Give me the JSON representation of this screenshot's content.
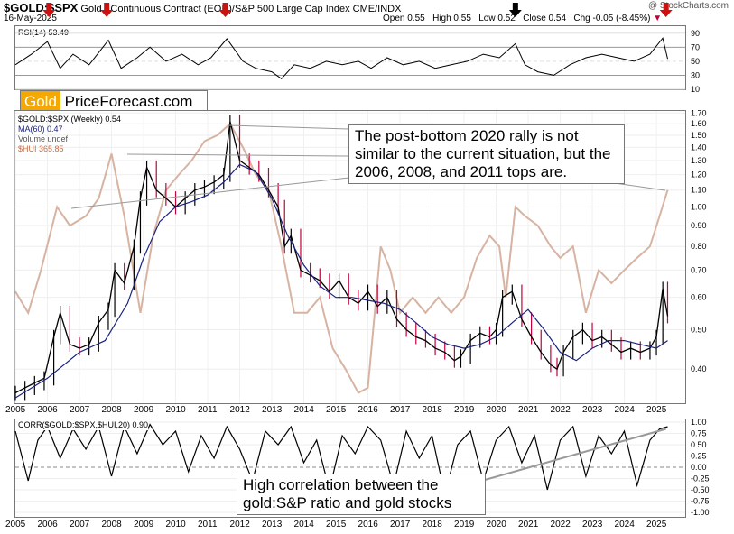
{
  "header": {
    "symbol": "$GOLD:$SPX",
    "description": "Gold - Continuous Contract (EOD)/S&P 500 Large Cap Index  CME/INDX",
    "date": "16-May-2025",
    "open_label": "Open",
    "open": "0.55",
    "high_label": "High",
    "high": "0.55",
    "low_label": "Low",
    "low": "0.52",
    "close_label": "Close",
    "close": "0.54",
    "chg_label": "Chg",
    "chg": "-0.05 (-8.45%)",
    "brand": "@ StockCharts.com"
  },
  "logo": {
    "part1": "Gold",
    "part2": "PriceForecast.com"
  },
  "colors": {
    "ma": "#1a237e",
    "hui": "#d7b3a2",
    "candle": "#000000",
    "candle_down": "#c2003a",
    "arrow_red": "#cc1111",
    "arrow_black": "#000000",
    "logo_orange": "#f5a800"
  },
  "rsi_panel": {
    "legend": "RSI(14) 53.49",
    "ticks": [
      90,
      70,
      50,
      30,
      10
    ],
    "overbought": 70,
    "midline": 50,
    "oversold": 30,
    "arrows": [
      {
        "year": 2006.05,
        "color": "red"
      },
      {
        "year": 2007.85,
        "color": "red"
      },
      {
        "year": 2011.55,
        "color": "red"
      },
      {
        "year": 2020.6,
        "color": "black"
      },
      {
        "year": 2025.3,
        "color": "red"
      }
    ]
  },
  "main_panel": {
    "legend": [
      "$GOLD:$SPX (Weekly) 0.54",
      "MA(60) 0.47",
      "Volume undef",
      "$HUI 365.85"
    ],
    "y_ticks": [
      "1.70",
      "1.60",
      "1.50",
      "1.40",
      "1.30",
      "1.20",
      "1.10",
      "1.00",
      "0.90",
      "0.80",
      "0.70",
      "0.60",
      "0.50",
      "0.40"
    ],
    "annotation": "The post-bottom 2020 rally is not similar to the current situation, but the 2006, 2008, and 2011 tops are."
  },
  "corr_panel": {
    "legend": "CORR($GOLD:$SPX,$HUI,20) 0.90",
    "y_ticks": [
      "1.00",
      "0.75",
      "0.50",
      "0.25",
      "0.00",
      "-0.25",
      "-0.50",
      "-0.75",
      "-1.00"
    ],
    "annotation": "High correlation between the gold:S&P ratio and gold stocks"
  },
  "x_axis": {
    "years": [
      "2005",
      "2006",
      "2007",
      "2008",
      "2009",
      "2010",
      "2011",
      "2012",
      "2013",
      "2014",
      "2015",
      "2016",
      "2017",
      "2018",
      "2019",
      "2020",
      "2021",
      "2022",
      "2023",
      "2024",
      "2025"
    ]
  },
  "chart_data": {
    "type": "line",
    "title": "$GOLD:$SPX Gold - Continuous Contract (EOD)/S&P 500 Large Cap Index",
    "xlabel": "",
    "ylabel": "",
    "x_range": [
      2005.0,
      2025.4
    ],
    "ylim": [
      0.33,
      1.72
    ],
    "y_scale": "log",
    "series": [
      {
        "name": "$GOLD:$SPX",
        "x": [
          2005.0,
          2005.3,
          2005.6,
          2005.9,
          2006.2,
          2006.4,
          2006.7,
          2007.0,
          2007.3,
          2007.6,
          2007.9,
          2008.1,
          2008.4,
          2008.7,
          2008.9,
          2009.1,
          2009.4,
          2009.7,
          2010.0,
          2010.3,
          2010.6,
          2010.9,
          2011.2,
          2011.5,
          2011.7,
          2012.0,
          2012.3,
          2012.6,
          2012.9,
          2013.2,
          2013.4,
          2013.6,
          2013.9,
          2014.2,
          2014.5,
          2014.8,
          2015.1,
          2015.4,
          2015.7,
          2016.0,
          2016.3,
          2016.6,
          2016.9,
          2017.2,
          2017.5,
          2017.8,
          2018.1,
          2018.4,
          2018.7,
          2018.9,
          2019.2,
          2019.5,
          2019.8,
          2020.0,
          2020.2,
          2020.5,
          2020.8,
          2021.1,
          2021.4,
          2021.7,
          2021.9,
          2022.1,
          2022.4,
          2022.7,
          2023.0,
          2023.3,
          2023.6,
          2023.9,
          2024.2,
          2024.5,
          2024.8,
          2025.0,
          2025.2,
          2025.35
        ],
        "values": [
          0.35,
          0.36,
          0.37,
          0.38,
          0.48,
          0.55,
          0.46,
          0.45,
          0.46,
          0.52,
          0.56,
          0.7,
          0.65,
          0.8,
          1.05,
          1.25,
          1.1,
          1.05,
          1.0,
          1.05,
          1.1,
          1.12,
          1.15,
          1.2,
          1.62,
          1.3,
          1.25,
          1.2,
          1.1,
          1.0,
          0.8,
          0.85,
          0.7,
          0.68,
          0.66,
          0.62,
          0.66,
          0.6,
          0.58,
          0.62,
          0.57,
          0.6,
          0.53,
          0.5,
          0.48,
          0.47,
          0.45,
          0.44,
          0.42,
          0.43,
          0.47,
          0.49,
          0.48,
          0.5,
          0.6,
          0.62,
          0.53,
          0.48,
          0.44,
          0.41,
          0.4,
          0.44,
          0.48,
          0.5,
          0.47,
          0.48,
          0.46,
          0.44,
          0.45,
          0.44,
          0.45,
          0.48,
          0.63,
          0.54
        ]
      },
      {
        "name": "MA(60)",
        "x": [
          2005.0,
          2006.0,
          2007.0,
          2007.8,
          2008.5,
          2009.0,
          2009.5,
          2010.0,
          2010.5,
          2011.0,
          2011.5,
          2012.0,
          2012.5,
          2013.0,
          2013.5,
          2014.0,
          2014.5,
          2015.0,
          2015.5,
          2016.0,
          2016.5,
          2017.0,
          2017.5,
          2018.0,
          2018.5,
          2019.0,
          2019.5,
          2020.0,
          2020.5,
          2021.0,
          2021.5,
          2022.0,
          2022.5,
          2023.0,
          2023.5,
          2024.0,
          2024.5,
          2025.0,
          2025.35
        ],
        "values": [
          0.34,
          0.38,
          0.44,
          0.47,
          0.58,
          0.75,
          0.92,
          1.0,
          1.03,
          1.07,
          1.15,
          1.27,
          1.22,
          1.05,
          0.85,
          0.72,
          0.64,
          0.6,
          0.6,
          0.59,
          0.58,
          0.56,
          0.52,
          0.48,
          0.46,
          0.45,
          0.46,
          0.48,
          0.52,
          0.56,
          0.5,
          0.44,
          0.42,
          0.45,
          0.47,
          0.47,
          0.46,
          0.45,
          0.47
        ]
      },
      {
        "name": "$HUI",
        "x": [
          2005.0,
          2005.4,
          2005.8,
          2006.3,
          2006.7,
          2007.2,
          2007.6,
          2008.0,
          2008.4,
          2008.9,
          2009.3,
          2009.7,
          2010.1,
          2010.5,
          2010.9,
          2011.3,
          2011.7,
          2012.1,
          2012.5,
          2012.9,
          2013.3,
          2013.7,
          2014.1,
          2014.5,
          2014.9,
          2015.3,
          2015.7,
          2016.0,
          2016.4,
          2016.7,
          2017.0,
          2017.4,
          2017.8,
          2018.2,
          2018.6,
          2019.0,
          2019.4,
          2019.8,
          2020.1,
          2020.3,
          2020.6,
          2020.9,
          2021.3,
          2021.7,
          2022.0,
          2022.4,
          2022.8,
          2023.2,
          2023.6,
          2024.0,
          2024.4,
          2024.8,
          2025.1,
          2025.35
        ],
        "values": [
          0.62,
          0.55,
          0.7,
          1.0,
          0.9,
          0.95,
          1.05,
          1.35,
          0.95,
          0.55,
          0.85,
          1.1,
          1.2,
          1.3,
          1.45,
          1.5,
          1.6,
          1.4,
          1.2,
          1.1,
          0.8,
          0.55,
          0.55,
          0.6,
          0.45,
          0.4,
          0.35,
          0.36,
          0.8,
          0.7,
          0.55,
          0.6,
          0.55,
          0.6,
          0.55,
          0.6,
          0.75,
          0.85,
          0.8,
          0.6,
          1.0,
          0.95,
          0.9,
          0.8,
          0.75,
          0.8,
          0.55,
          0.7,
          0.65,
          0.7,
          0.75,
          0.8,
          0.95,
          1.1
        ]
      }
    ],
    "rsi": {
      "name": "RSI(14)",
      "ylim": [
        10,
        100
      ],
      "x": [
        2005.0,
        2005.5,
        2006.0,
        2006.4,
        2006.8,
        2007.3,
        2007.9,
        2008.3,
        2008.8,
        2009.2,
        2009.7,
        2010.2,
        2010.7,
        2011.1,
        2011.6,
        2012.1,
        2012.5,
        2013.0,
        2013.3,
        2013.7,
        2014.2,
        2014.7,
        2015.2,
        2015.7,
        2016.1,
        2016.6,
        2017.1,
        2017.6,
        2018.1,
        2018.6,
        2019.1,
        2019.6,
        2020.1,
        2020.6,
        2020.9,
        2021.3,
        2021.8,
        2022.3,
        2022.8,
        2023.3,
        2023.8,
        2024.3,
        2024.8,
        2025.2,
        2025.35
      ],
      "values": [
        45,
        60,
        78,
        40,
        60,
        45,
        80,
        40,
        55,
        70,
        50,
        60,
        45,
        55,
        82,
        50,
        40,
        35,
        25,
        45,
        40,
        50,
        45,
        50,
        40,
        55,
        45,
        50,
        40,
        45,
        50,
        60,
        55,
        75,
        45,
        35,
        30,
        45,
        55,
        60,
        55,
        50,
        60,
        83,
        53.49
      ]
    },
    "correlation": {
      "name": "CORR($GOLD:$SPX,$HUI,20)",
      "ylim": [
        -1.0,
        1.0
      ],
      "x": [
        2005.0,
        2005.4,
        2005.7,
        2006.0,
        2006.4,
        2006.8,
        2007.2,
        2007.6,
        2008.0,
        2008.4,
        2008.8,
        2009.2,
        2009.6,
        2010.0,
        2010.4,
        2010.8,
        2011.2,
        2011.6,
        2012.0,
        2012.4,
        2012.8,
        2013.2,
        2013.6,
        2014.0,
        2014.4,
        2014.8,
        2015.2,
        2015.6,
        2016.0,
        2016.4,
        2016.8,
        2017.2,
        2017.6,
        2018.0,
        2018.4,
        2018.8,
        2019.2,
        2019.6,
        2020.0,
        2020.4,
        2020.8,
        2021.2,
        2021.6,
        2022.0,
        2022.4,
        2022.8,
        2023.2,
        2023.6,
        2024.0,
        2024.4,
        2024.8,
        2025.1,
        2025.35
      ],
      "values": [
        0.8,
        -0.3,
        0.6,
        0.9,
        0.2,
        0.85,
        0.4,
        0.9,
        -0.2,
        0.9,
        0.3,
        0.95,
        0.5,
        0.8,
        -0.1,
        0.7,
        0.2,
        0.9,
        0.4,
        -0.3,
        0.8,
        0.5,
        0.9,
        0.1,
        0.6,
        -0.5,
        0.7,
        0.3,
        0.9,
        0.6,
        -0.4,
        0.8,
        0.2,
        0.7,
        -0.6,
        0.5,
        0.8,
        -0.3,
        0.6,
        0.9,
        0.1,
        0.7,
        -0.5,
        0.6,
        0.9,
        -0.2,
        0.7,
        0.3,
        0.8,
        -0.4,
        0.6,
        0.85,
        0.9
      ]
    }
  }
}
